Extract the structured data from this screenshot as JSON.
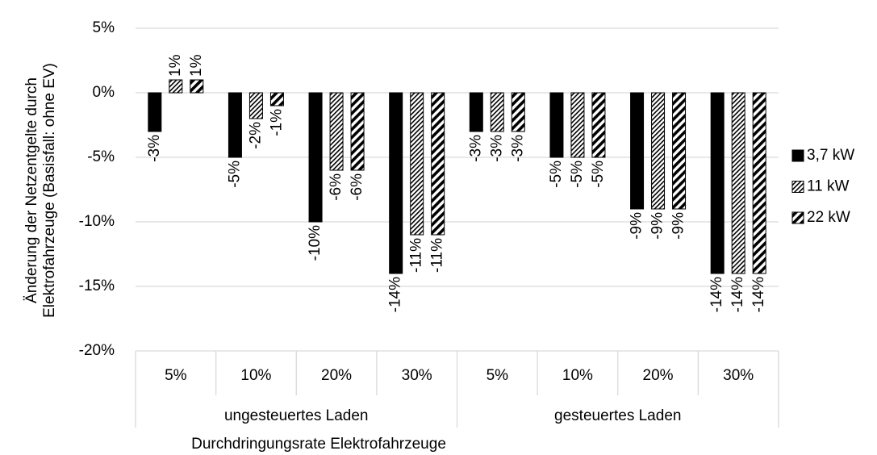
{
  "chart_data": {
    "type": "bar",
    "ylabel": [
      "Änderung der Netzentgelte durch",
      "Elektrofahrzeuge (Basisfall: ohne EV)"
    ],
    "xlabel": "Durchdringungsrate Elektrofahrzeuge",
    "categories": [
      "5%",
      "10%",
      "20%",
      "30%",
      "5%",
      "10%",
      "20%",
      "30%"
    ],
    "category_groups": [
      "ungesteuertes Laden",
      "gesteuertes Laden"
    ],
    "series": [
      {
        "name": "3,7 kW",
        "color": "#000000",
        "pattern": "solid",
        "values": [
          -3,
          -5,
          -10,
          -14,
          -3,
          -5,
          -9,
          -14
        ],
        "value_labels": [
          "-3%",
          "-5%",
          "-10%",
          "-14%",
          "-3%",
          "-5%",
          "-9%",
          "-14%"
        ]
      },
      {
        "name": "11 kW",
        "color": "#000000",
        "pattern": "fine-hatch",
        "values": [
          1,
          -2,
          -6,
          -11,
          -3,
          -5,
          -9,
          -14
        ],
        "value_labels": [
          "1%",
          "-2%",
          "-6%",
          "-11%",
          "-3%",
          "-5%",
          "-9%",
          "-14%"
        ]
      },
      {
        "name": "22 kW",
        "color": "#000000",
        "pattern": "wide-hatch",
        "values": [
          1,
          -1,
          -6,
          -11,
          -3,
          -5,
          -9,
          -14
        ],
        "value_labels": [
          "1%",
          "-1%",
          "-6%",
          "-11%",
          "-3%",
          "-5%",
          "-9%",
          "-14%"
        ]
      }
    ],
    "ylim": [
      -20,
      5
    ],
    "yticks": [
      {
        "value": 5,
        "label": "5%"
      },
      {
        "value": 0,
        "label": "0%"
      },
      {
        "value": -5,
        "label": "-5%"
      },
      {
        "value": -10,
        "label": "-10%"
      },
      {
        "value": -15,
        "label": "-15%"
      },
      {
        "value": -20,
        "label": "-20%"
      }
    ],
    "grid": true,
    "legend": "right"
  }
}
